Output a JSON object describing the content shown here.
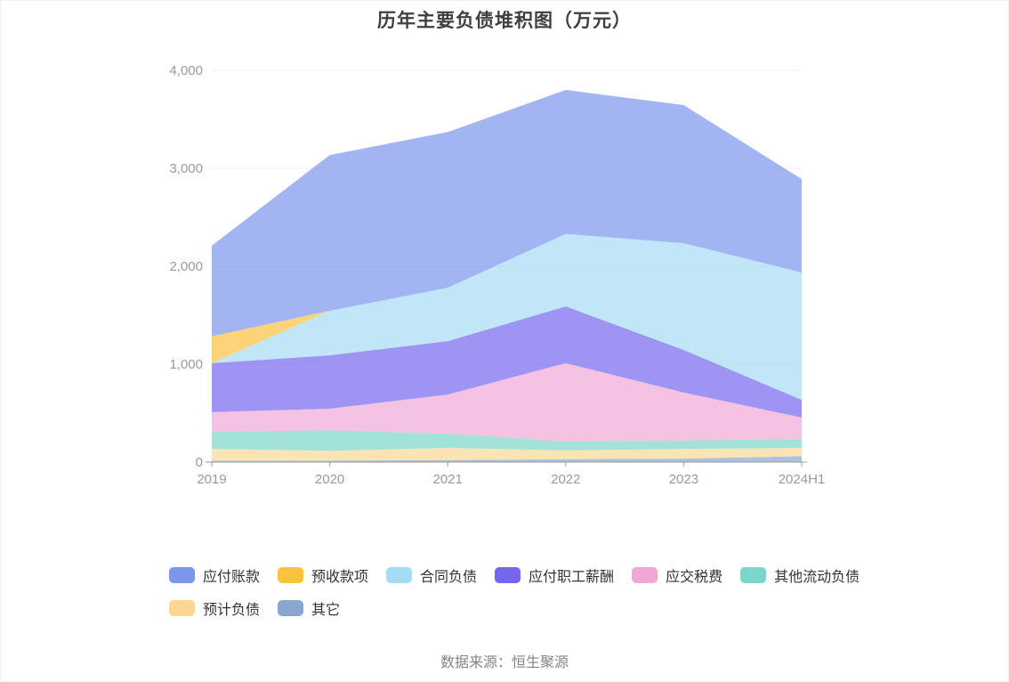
{
  "page": {
    "title": "历年主要负债堆积图（万元）",
    "source_note": "数据来源：恒生聚源"
  },
  "colors": {
    "grid_line": "#ececec",
    "axis_line": "#999999",
    "axis_label": "#999999",
    "title_text": "#3f3f3f",
    "legend_text": "#333333",
    "area_opacity": 0.7
  },
  "chart_data": {
    "type": "area",
    "stacked": true,
    "title": "历年主要负债堆积图（万元）",
    "xlabel": "",
    "ylabel": "",
    "unit": "万元",
    "grid": true,
    "legend_position": "bottom",
    "ylim": [
      0,
      4000
    ],
    "ytick_values": [
      0,
      1000,
      2000,
      3000,
      4000
    ],
    "ytick_labels": [
      "0",
      "1,000",
      "2,000",
      "3,000",
      "4,000"
    ],
    "categories": [
      "2019",
      "2020",
      "2021",
      "2022",
      "2023",
      "2024H1"
    ],
    "stack_order": [
      "其它",
      "预计负债",
      "其他流动负债",
      "应交税费",
      "应付职工薪酬",
      "合同负债",
      "预收款项",
      "应付账款"
    ],
    "series": [
      {
        "name": "应付账款",
        "color": "#7B96EC",
        "values": [
          925,
          1590,
          1590,
          1470,
          1410,
          955
        ]
      },
      {
        "name": "预收款项",
        "color": "#FBC23D",
        "values": [
          275,
          0,
          0,
          0,
          0,
          0
        ]
      },
      {
        "name": "合同负债",
        "color": "#A5DBF5",
        "values": [
          0,
          455,
          545,
          740,
          1090,
          1300
        ]
      },
      {
        "name": "应付职工薪酬",
        "color": "#7467EE",
        "values": [
          500,
          545,
          545,
          580,
          435,
          180
        ]
      },
      {
        "name": "应交税费",
        "color": "#EFA8D5",
        "values": [
          200,
          220,
          400,
          800,
          490,
          220
        ]
      },
      {
        "name": "其他流动负债",
        "color": "#7AD6C8",
        "values": [
          175,
          210,
          145,
          90,
          85,
          90
        ]
      },
      {
        "name": "预计负债",
        "color": "#FAD894",
        "values": [
          120,
          100,
          125,
          90,
          100,
          85
        ]
      },
      {
        "name": "其它",
        "color": "#89A6CE",
        "values": [
          15,
          15,
          20,
          30,
          35,
          60
        ]
      }
    ],
    "totals": [
      2210,
      3135,
      3370,
      3800,
      3645,
      2890
    ]
  }
}
